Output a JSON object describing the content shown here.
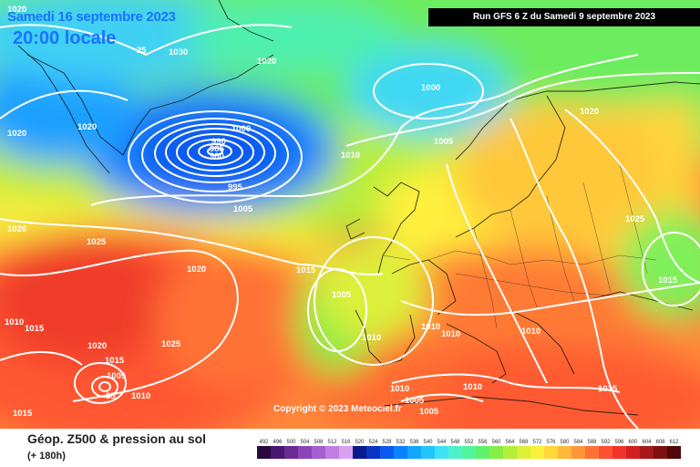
{
  "header": {
    "date": "Samedi 16 septembre 2023",
    "time": "20:00 locale",
    "run": "Run GFS 6 Z du Samedi 9 septembre 2023"
  },
  "copyright": "Copyright © 2023 Meteociel.fr",
  "legend": {
    "title": "Géop. Z500 & pression au sol",
    "subtitle": "(+ 180h)",
    "values": [
      "492",
      "496",
      "500",
      "504",
      "508",
      "512",
      "516",
      "520",
      "524",
      "528",
      "532",
      "536",
      "540",
      "544",
      "548",
      "552",
      "556",
      "560",
      "564",
      "568",
      "572",
      "576",
      "580",
      "584",
      "588",
      "592",
      "596",
      "600",
      "604",
      "608",
      "612"
    ],
    "colors": [
      "#2a0a3e",
      "#4b1670",
      "#6a2a96",
      "#8a44b8",
      "#a65fcf",
      "#c07ee0",
      "#d8a2ee",
      "#0a1a8c",
      "#0b34c4",
      "#0a5af0",
      "#0a82ff",
      "#13a6ff",
      "#22c6ff",
      "#3fe2f4",
      "#4ef0cc",
      "#52f49c",
      "#60f06c",
      "#86ee46",
      "#b4ee3a",
      "#dcf03a",
      "#f8f03a",
      "#ffd83a",
      "#ffb83a",
      "#ff963a",
      "#ff7236",
      "#ff5030",
      "#f0342a",
      "#d02020",
      "#a81818",
      "#801010",
      "#500808"
    ]
  },
  "isobar_labels": [
    {
      "text": "1020",
      "name": "isobar-label-1020-topleft"
    },
    {
      "text": "1030",
      "name": "isobar-label-1030"
    },
    {
      "text": "25",
      "name": "isobar-label-25"
    },
    {
      "text": "1020",
      "name": "isobar-label-1020-greenland-east"
    },
    {
      "text": "1020",
      "name": "isobar-label-1020-left"
    },
    {
      "text": "1020",
      "name": "isobar-label-1020-greenland"
    },
    {
      "text": "1000",
      "name": "isobar-label-1000-north"
    },
    {
      "text": "1000",
      "name": "isobar-label-1000-low"
    },
    {
      "text": "990",
      "name": "isobar-label-990"
    },
    {
      "text": "985",
      "name": "isobar-label-985"
    },
    {
      "text": "980",
      "name": "isobar-label-980"
    },
    {
      "text": "995",
      "name": "isobar-label-995"
    },
    {
      "text": "1005",
      "name": "isobar-label-1005-low"
    },
    {
      "text": "1010",
      "name": "isobar-label-1010-north"
    },
    {
      "text": "1005",
      "name": "isobar-label-1005-north"
    },
    {
      "text": "1020",
      "name": "isobar-label-1020-scandinavia"
    },
    {
      "text": "1025",
      "name": "isobar-label-1025-russia"
    },
    {
      "text": "1020",
      "name": "isobar-label-1020-west"
    },
    {
      "text": "1025",
      "name": "isobar-label-1025-west"
    },
    {
      "text": "1020",
      "name": "isobar-label-1020-mid"
    },
    {
      "text": "1015",
      "name": "isobar-label-1015-mid"
    },
    {
      "text": "1005",
      "name": "isobar-label-1005-iberia"
    },
    {
      "text": "1010",
      "name": "isobar-label-1010-portugal"
    },
    {
      "text": "1010",
      "name": "isobar-label-1010-france"
    },
    {
      "text": "1010",
      "name": "isobar-label-1010-alps"
    },
    {
      "text": "1010",
      "name": "isobar-label-1010-italy"
    },
    {
      "text": "1015",
      "name": "isobar-label-1015-east"
    },
    {
      "text": "1010",
      "name": "isobar-label-1010-atlantic"
    },
    {
      "text": "1015",
      "name": "isobar-label-1015-atlantic"
    },
    {
      "text": "1025",
      "name": "isobar-label-1025-azores"
    },
    {
      "text": "1020",
      "name": "isobar-label-1020-sw"
    },
    {
      "text": "1015",
      "name": "isobar-label-1015-sw"
    },
    {
      "text": "1005",
      "name": "isobar-label-1005-hurricane"
    },
    {
      "text": "85",
      "name": "isobar-label-85"
    },
    {
      "text": "1010",
      "name": "isobar-label-1010-hurricane"
    },
    {
      "text": "1015",
      "name": "isobar-label-1015-bottom"
    },
    {
      "text": "1010",
      "name": "isobar-label-1010-med-west"
    },
    {
      "text": "1005",
      "name": "isobar-label-1005-med"
    },
    {
      "text": "1005",
      "name": "isobar-label-1005-med-south"
    },
    {
      "text": "1010",
      "name": "isobar-label-1010-med-east"
    },
    {
      "text": "1015",
      "name": "isobar-label-1015-balkans"
    }
  ]
}
